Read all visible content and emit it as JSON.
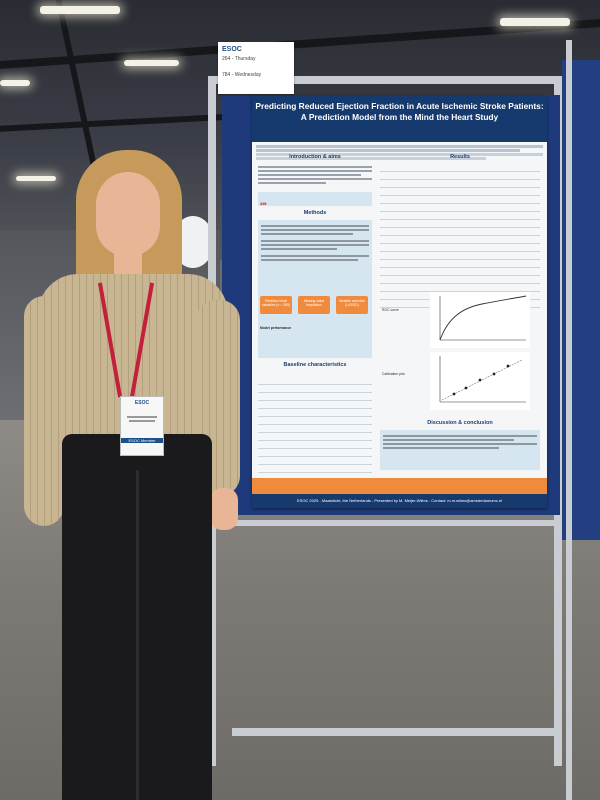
{
  "sign": {
    "logo_text": "ESOC",
    "line1": "264 - Thursday",
    "line2": "784 - Wednesday"
  },
  "poster": {
    "title": "Predicting Reduced Ejection Fraction in Acute Ischemic Stroke Patients: A Prediction Model from the Mind the Heart Study",
    "sections": {
      "intro": "Introduction & aims",
      "methods": "Methods",
      "results": "Results",
      "baseline": "Baseline characteristics",
      "discussion": "Discussion & conclusion"
    },
    "aim_label": "AIM:",
    "flow_steps": [
      "Predictor heart variables (n = 389)",
      "Missing value imputation",
      "Variable selection (LASSO)"
    ],
    "model_perf_label": "Model performance",
    "roc_label": "ROC curve",
    "calibration_label": "Calibration plot",
    "footer": "ESOC 2025 - Maastricht, the Netherlands - Presented by M. Meijer-Wilms - Contact: m.m.wilms@amsterdamumc.nl"
  },
  "badge": {
    "event": "ESOC",
    "role": "ESOC Member"
  },
  "colors": {
    "panel": "#1f3a7a",
    "poster_header": "#173a6e",
    "accent_orange": "#f08a3c"
  }
}
